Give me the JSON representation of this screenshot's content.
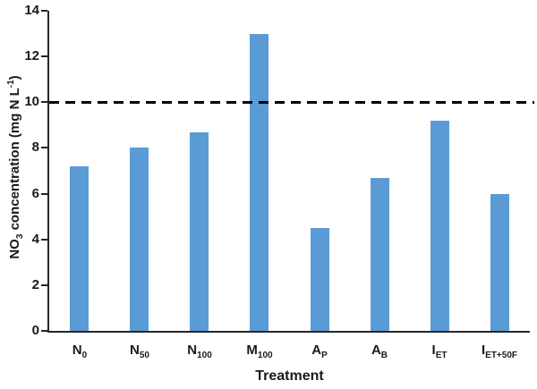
{
  "chart_data": {
    "type": "bar",
    "title": "",
    "xlabel": "Treatment",
    "ylabel": "NO3 concentration (mg N L-1)",
    "ylabel_parts": [
      {
        "t": "NO"
      },
      {
        "t": "3",
        "sub": true
      },
      {
        "t": " concentration (mg N L"
      },
      {
        "t": "-1",
        "sup": true
      },
      {
        "t": ")"
      }
    ],
    "categories": [
      {
        "label": "N0",
        "parts": [
          {
            "t": "N"
          },
          {
            "t": "0",
            "sub": true
          }
        ]
      },
      {
        "label": "N50",
        "parts": [
          {
            "t": "N"
          },
          {
            "t": "50",
            "sub": true
          }
        ]
      },
      {
        "label": "N100",
        "parts": [
          {
            "t": "N"
          },
          {
            "t": "100",
            "sub": true
          }
        ]
      },
      {
        "label": "M100",
        "parts": [
          {
            "t": "M"
          },
          {
            "t": "100",
            "sub": true
          }
        ]
      },
      {
        "label": "AP",
        "parts": [
          {
            "t": "A"
          },
          {
            "t": "P",
            "sub": true
          }
        ]
      },
      {
        "label": "AB",
        "parts": [
          {
            "t": "A"
          },
          {
            "t": "B",
            "sub": true
          }
        ]
      },
      {
        "label": "IET",
        "parts": [
          {
            "t": "I"
          },
          {
            "t": "ET",
            "sub": true
          }
        ]
      },
      {
        "label": "IET+50F",
        "parts": [
          {
            "t": "I"
          },
          {
            "t": "ET+50F",
            "sub": true
          }
        ]
      }
    ],
    "values": [
      7.2,
      8.0,
      8.7,
      13.0,
      4.5,
      6.7,
      9.2,
      6.0
    ],
    "ylim": [
      0,
      14
    ],
    "yticks": [
      0,
      2,
      4,
      6,
      8,
      10,
      12,
      14
    ],
    "reference_line": {
      "value": 10,
      "style": "dashed",
      "color": "#000000"
    },
    "bar_color": "#5B9BD5",
    "axis_color": "#262626",
    "grid": false,
    "legend": false
  }
}
